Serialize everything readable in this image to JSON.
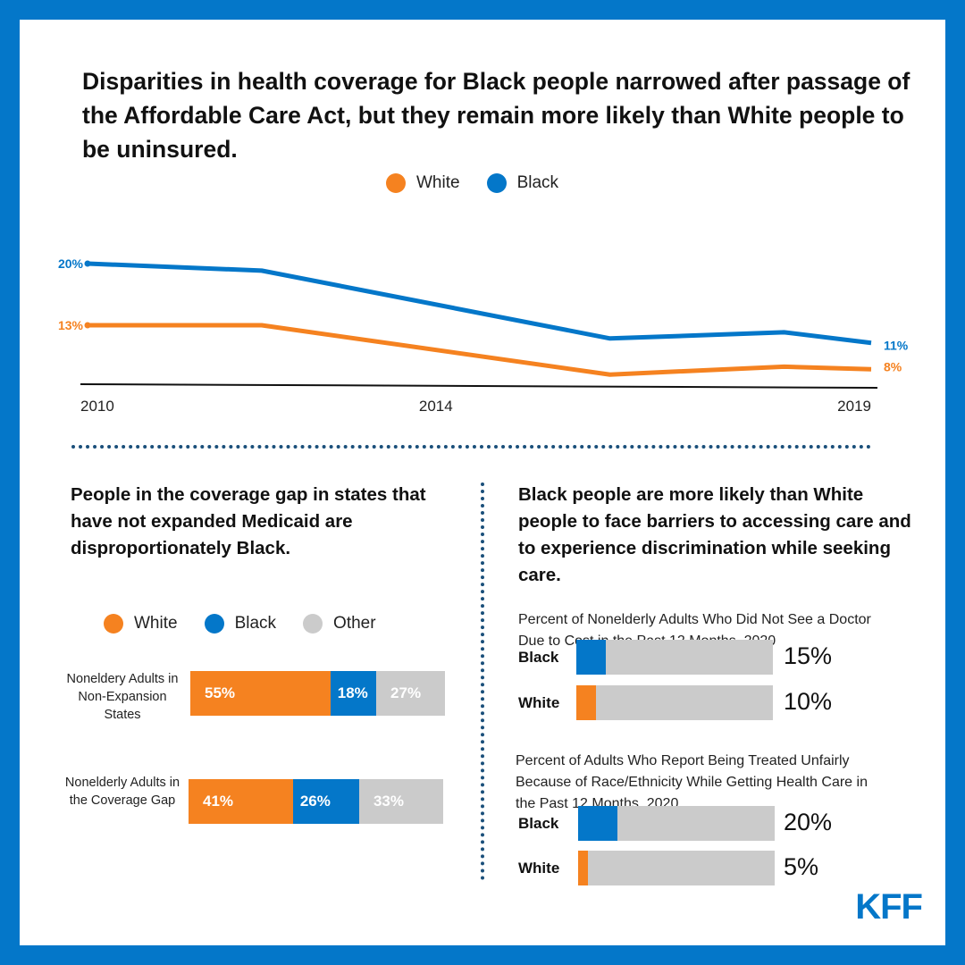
{
  "colors": {
    "white": "#F58220",
    "black": "#0477C9",
    "other": "#CBCBCB",
    "border": "#0477C9"
  },
  "title": "Disparities in health coverage for Black people narrowed after passage of the Affordable Care Act, but they remain more likely than White people to be uninsured.",
  "logo": "KFF",
  "chart_data": [
    {
      "type": "line",
      "legend": [
        "White",
        "Black"
      ],
      "legend_placement": "top",
      "x": [
        2010,
        2012,
        2016,
        2018,
        2019
      ],
      "xticks": [
        "2010",
        "2014",
        "2019"
      ],
      "xlim": [
        2010,
        2019
      ],
      "ylim": [
        5,
        21
      ],
      "grid": false,
      "series": [
        {
          "name": "White",
          "values": [
            13,
            13,
            7.4,
            8.3,
            8
          ],
          "start_label": "13%",
          "end_label": "8%"
        },
        {
          "name": "Black",
          "values": [
            20,
            19.2,
            11.5,
            12.2,
            11
          ],
          "start_label": "20%",
          "end_label": "11%"
        }
      ]
    },
    {
      "type": "bar",
      "stacked": true,
      "orientation": "horizontal",
      "title": "People in the coverage gap in states that have not expanded Medicaid are disproportionately Black.",
      "legend": [
        "White",
        "Black",
        "Other"
      ],
      "categories": [
        "Noneldery Adults in Non-Expansion States",
        "Nonelderly Adults in the Coverage Gap"
      ],
      "series": [
        {
          "name": "White",
          "values": [
            55,
            41
          ],
          "labels": [
            "55%",
            "41%"
          ]
        },
        {
          "name": "Black",
          "values": [
            18,
            26
          ],
          "labels": [
            "18%",
            "26%"
          ]
        },
        {
          "name": "Other",
          "values": [
            27,
            33
          ],
          "labels": [
            "27%",
            "33%"
          ]
        }
      ]
    },
    {
      "type": "bar",
      "orientation": "horizontal",
      "heading": "Black people are more likely than White people to face barriers to accessing care and to experience discrimination while seeking care.",
      "title": "Percent of Nonelderly Adults Who Did Not See a Doctor Due to Cost in the Past 12 Months, 2020",
      "categories": [
        "Black",
        "White"
      ],
      "values": [
        15,
        10
      ],
      "labels": [
        "15%",
        "10%"
      ],
      "xlim": [
        0,
        100
      ]
    },
    {
      "type": "bar",
      "orientation": "horizontal",
      "title": "Percent of Adults Who Report Being Treated Unfairly Because of Race/Ethnicity While Getting Health Care in the Past 12 Months, 2020",
      "categories": [
        "Black",
        "White"
      ],
      "values": [
        20,
        5
      ],
      "labels": [
        "20%",
        "5%"
      ],
      "xlim": [
        0,
        100
      ]
    }
  ]
}
